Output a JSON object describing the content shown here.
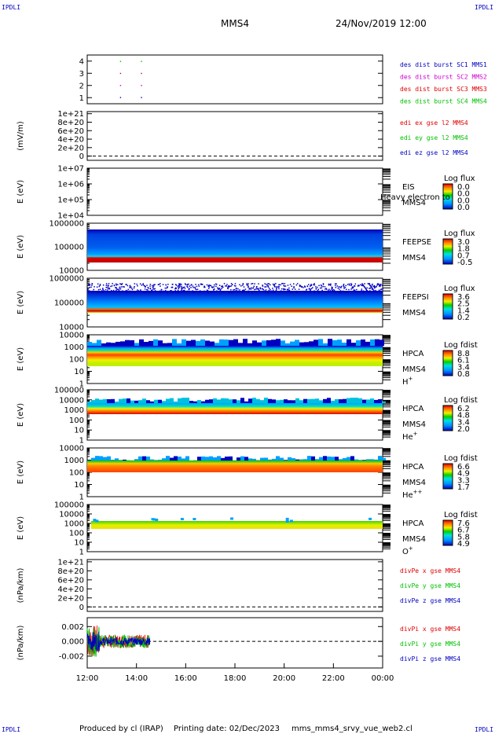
{
  "header": {
    "corner_tag": "IPDLI",
    "spacecraft": "MMS4",
    "datetime": "24/Nov/2019 12:00"
  },
  "footer": {
    "produced_by": "Produced by cl (IRAP)",
    "printing_date": "Printing date: 02/Dec/2023",
    "filename": "mms_mms4_srvy_vue_web2.cl"
  },
  "colors": {
    "black": "#000000",
    "red": "#e00000",
    "green": "#00c000",
    "blue": "#0000c0",
    "magenta": "#d000d0"
  },
  "chart_data": [
    {
      "type": "scatter",
      "id": "burst",
      "ylabel": "",
      "yticks": [
        "1",
        "2",
        "3",
        "4"
      ],
      "ylim": [
        0.5,
        4.5
      ],
      "xlabel": "",
      "legend": [
        {
          "text": "des dist burst SC1 MMS1",
          "color": "#0000c0"
        },
        {
          "text": "des dist burst SC2 MMS2",
          "color": "#d000d0"
        },
        {
          "text": "des dist burst SC3 MMS3",
          "color": "#e00000"
        },
        {
          "text": "des dist burst SC4 MMS4",
          "color": "#00c000"
        }
      ],
      "series": [
        {
          "name": "des dist burst SC1 MMS1",
          "color": "#0000c0",
          "x": [
            13.35,
            14.2
          ],
          "y": [
            1,
            1
          ]
        },
        {
          "name": "des dist burst SC2 MMS2",
          "color": "#d000d0",
          "x": [
            13.35,
            14.2
          ],
          "y": [
            2,
            2
          ]
        },
        {
          "name": "des dist burst SC3 MMS3",
          "color": "#e00000",
          "x": [
            13.35,
            14.2
          ],
          "y": [
            3,
            3
          ]
        },
        {
          "name": "des dist burst SC4 MMS4",
          "color": "#00c000",
          "x": [
            13.35,
            14.2
          ],
          "y": [
            4,
            4
          ]
        }
      ]
    },
    {
      "type": "line",
      "id": "edi",
      "ylabel": "(mV/m)",
      "yticks": [
        "0",
        "2e+20",
        "4e+20",
        "6e+20",
        "8e+20",
        "1e+21"
      ],
      "ylim": [
        -1e+20,
        1.05e+21
      ],
      "zero_line": true,
      "legend": [
        {
          "text": "edi ex gse l2 MMS4",
          "color": "#e00000"
        },
        {
          "text": "edi ey gse l2 MMS4",
          "color": "#00c000"
        },
        {
          "text": "edi ez gse l2 MMS4",
          "color": "#0000c0"
        }
      ]
    },
    {
      "type": "heatmap",
      "id": "eis",
      "ylabel": "E (eV)",
      "yticks": [
        "1e+04",
        "1e+05",
        "1e+06",
        "1e+07"
      ],
      "right_labels": [
        "EIS",
        "MMS4"
      ],
      "overlay_text": "Heavy electron to",
      "colorbar": {
        "title": "Log flux",
        "ticks": [
          "0.0",
          "0.0",
          "0.0",
          "0.0"
        ]
      }
    },
    {
      "type": "heatmap",
      "id": "feepse",
      "ylabel": "E (eV)",
      "yticks": [
        "10000",
        "100000",
        "1000000"
      ],
      "right_labels": [
        "FEEPSE",
        "MMS4"
      ],
      "colorbar": {
        "title": "Log flux",
        "ticks": [
          "3.0",
          "1.8",
          "0.7",
          "-0.5"
        ]
      }
    },
    {
      "type": "heatmap",
      "id": "feepsi",
      "ylabel": "E (eV)",
      "yticks": [
        "10000",
        "100000",
        "1000000"
      ],
      "right_labels": [
        "FEEPSI",
        "MMS4"
      ],
      "colorbar": {
        "title": "Log flux",
        "ticks": [
          "3.6",
          "2.5",
          "1.4",
          "0.2"
        ]
      }
    },
    {
      "type": "heatmap",
      "id": "hpca_h",
      "ylabel": "E (eV)",
      "yticks": [
        "1",
        "10",
        "100",
        "1000",
        "10000"
      ],
      "right_labels": [
        "HPCA",
        "MMS4",
        "H"
      ],
      "species_sup": "+",
      "colorbar": {
        "title": "Log fdist",
        "ticks": [
          "8.8",
          "6.1",
          "3.4",
          "0.8"
        ]
      }
    },
    {
      "type": "heatmap",
      "id": "hpca_he",
      "ylabel": "E (eV)",
      "yticks": [
        "1",
        "10",
        "100",
        "1000",
        "10000",
        "100000"
      ],
      "right_labels": [
        "HPCA",
        "MMS4",
        "He"
      ],
      "species_sup": "+",
      "colorbar": {
        "title": "Log fdist",
        "ticks": [
          "6.2",
          "4.8",
          "3.4",
          "2.0"
        ]
      }
    },
    {
      "type": "heatmap",
      "id": "hpca_hepp",
      "ylabel": "E (eV)",
      "yticks": [
        "1",
        "10",
        "100",
        "1000",
        "10000"
      ],
      "right_labels": [
        "HPCA",
        "MMS4",
        "He"
      ],
      "species_sup": "++",
      "colorbar": {
        "title": "Log fdist",
        "ticks": [
          "6.6",
          "4.9",
          "3.3",
          "1.7"
        ]
      }
    },
    {
      "type": "heatmap",
      "id": "hpca_o",
      "ylabel": "E (eV)",
      "yticks": [
        "1",
        "10",
        "100",
        "1000",
        "10000",
        "100000"
      ],
      "right_labels": [
        "HPCA",
        "MMS4",
        "O"
      ],
      "species_sup": "+",
      "colorbar": {
        "title": "Log fdist",
        "ticks": [
          "7.6",
          "6.7",
          "5.8",
          "4.9"
        ]
      }
    },
    {
      "type": "line",
      "id": "divpe",
      "ylabel": "(nPa/km)",
      "yticks": [
        "0",
        "2e+20",
        "4e+20",
        "6e+20",
        "8e+20",
        "1e+21"
      ],
      "ylim": [
        -1e+20,
        1.05e+21
      ],
      "zero_line": true,
      "legend": [
        {
          "text": "divPe x gse MMS4",
          "color": "#e00000"
        },
        {
          "text": "divPe y gse MMS4",
          "color": "#00c000"
        },
        {
          "text": "divPe z gse MMS4",
          "color": "#0000c0"
        }
      ]
    },
    {
      "type": "line",
      "id": "divpi",
      "ylabel": "(nPa/km)",
      "yticks": [
        "-0.002",
        "0.000",
        "0.002"
      ],
      "ylim": [
        -0.0036,
        0.0032
      ],
      "zero_line": true,
      "legend": [
        {
          "text": "divPi x gse MMS4",
          "color": "#e00000"
        },
        {
          "text": "divPi y gse MMS4",
          "color": "#00c000"
        },
        {
          "text": "divPi z gse MMS4",
          "color": "#0000c0"
        }
      ]
    }
  ],
  "time_axis": {
    "ticks": [
      "12:00",
      "14:00",
      "16:00",
      "18:00",
      "20:00",
      "22:00",
      "00:00"
    ],
    "range_hours": [
      12,
      24
    ]
  }
}
